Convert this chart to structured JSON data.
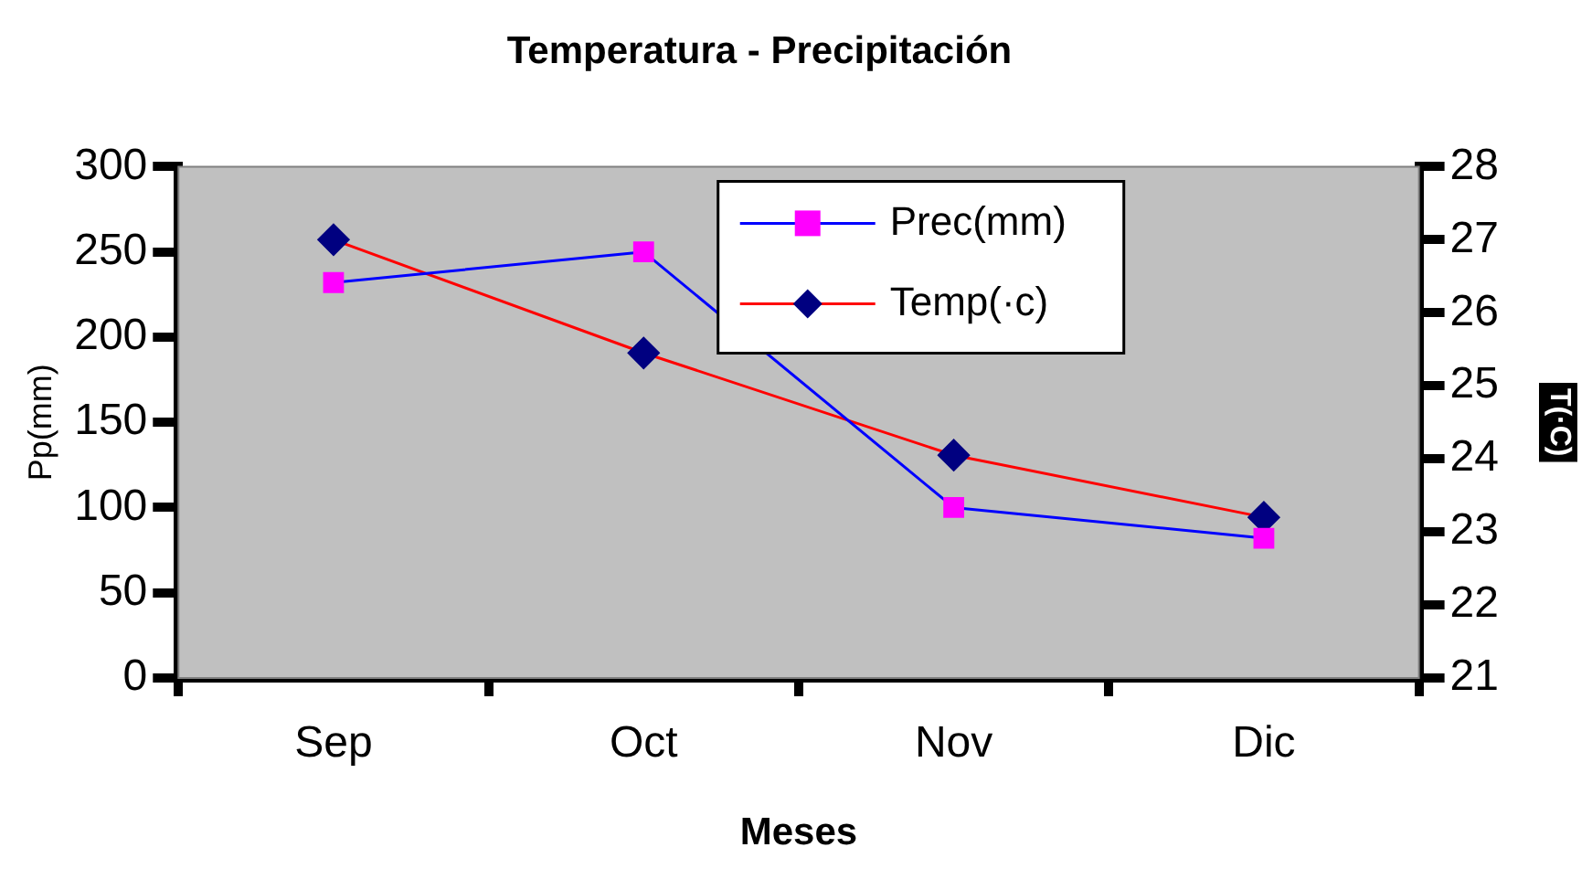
{
  "chart_data": {
    "type": "line",
    "title": "Temperatura - Precipitación",
    "xlabel": "Meses",
    "ylabel": "Pp(mm)",
    "y2label": "T(·C)",
    "categories": [
      "Sep",
      "Oct",
      "Nov",
      "Dic"
    ],
    "series": [
      {
        "name": "Prec(mm)",
        "color": "#0000ff",
        "colors": [
          "#ff00ff",
          "#ff00ff",
          "#ff00ff",
          "#ff00ff"
        ],
        "marker": "square",
        "values": [
          232,
          250,
          100,
          82
        ]
      },
      {
        "name": "Temp(·c)",
        "color": "#ff0000",
        "colors": [
          "#000080",
          "#000080",
          "#000080",
          "#000080"
        ],
        "marker": "diamond",
        "axis": "y2",
        "values": [
          27.0,
          25.45,
          24.05,
          23.2
        ]
      }
    ],
    "ylim": [
      0,
      300
    ],
    "yticks": [
      0,
      50,
      100,
      150,
      200,
      250,
      300
    ],
    "y2lim": [
      21,
      28
    ],
    "y2ticks": [
      21,
      22,
      23,
      24,
      25,
      26,
      27,
      28
    ],
    "grid": false,
    "legend": "top right",
    "line_style": "solid"
  }
}
